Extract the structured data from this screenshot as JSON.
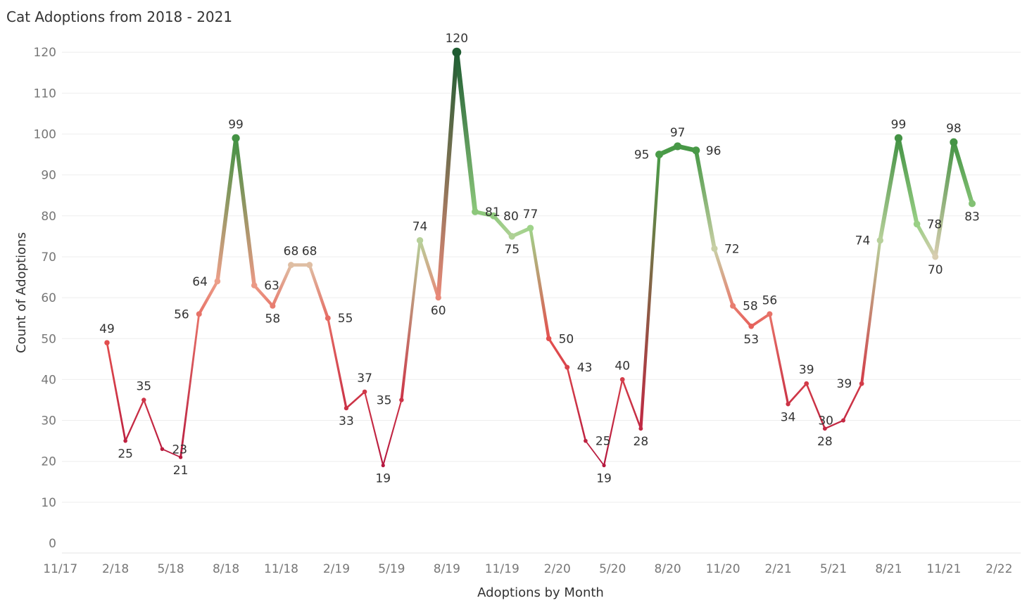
{
  "chart_data": {
    "type": "line",
    "title": "Cat Adoptions from 2018 - 2021",
    "xlabel": "Adoptions by Month",
    "ylabel": "Count of Adoptions",
    "ylim": [
      0,
      120
    ],
    "yticks": [
      0,
      10,
      20,
      30,
      40,
      50,
      60,
      70,
      80,
      90,
      100,
      110,
      120
    ],
    "xtick_labels": [
      "11/17",
      "2/18",
      "5/18",
      "8/18",
      "11/18",
      "2/19",
      "5/19",
      "8/19",
      "11/19",
      "2/20",
      "5/20",
      "8/20",
      "11/20",
      "2/21",
      "5/21",
      "8/21",
      "11/21",
      "2/22"
    ],
    "grid": true,
    "color_scale": {
      "low": "#b5173e",
      "mid": "#e8a08c",
      "light_green": "#9fd38a",
      "high": "#1f5c32"
    },
    "series": [
      {
        "points": [
          {
            "x": "2018-01",
            "y": 49
          },
          {
            "x": "2018-02",
            "y": 25
          },
          {
            "x": "2018-03",
            "y": 35
          },
          {
            "x": "2018-04",
            "y": 23
          },
          {
            "x": "2018-05",
            "y": 21
          },
          {
            "x": "2018-06",
            "y": 56
          },
          {
            "x": "2018-07",
            "y": 64
          },
          {
            "x": "2018-08",
            "y": 99
          },
          {
            "x": "2018-09",
            "y": 63
          },
          {
            "x": "2018-10",
            "y": 58
          },
          {
            "x": "2018-11",
            "y": 68
          },
          {
            "x": "2018-12",
            "y": 68
          },
          {
            "x": "2019-01",
            "y": 55
          },
          {
            "x": "2019-02",
            "y": 33
          },
          {
            "x": "2019-03",
            "y": 37
          },
          {
            "x": "2019-04",
            "y": 19
          },
          {
            "x": "2019-05",
            "y": 35
          },
          {
            "x": "2019-06",
            "y": 74
          },
          {
            "x": "2019-07",
            "y": 60
          },
          {
            "x": "2019-08",
            "y": 120
          },
          {
            "x": "2019-09",
            "y": 81
          },
          {
            "x": "2019-10",
            "y": 80
          },
          {
            "x": "2019-11",
            "y": 75
          },
          {
            "x": "2019-12",
            "y": 77
          },
          {
            "x": "2020-01",
            "y": 50
          },
          {
            "x": "2020-02",
            "y": 43
          },
          {
            "x": "2020-03",
            "y": 25
          },
          {
            "x": "2020-04",
            "y": 19
          },
          {
            "x": "2020-05",
            "y": 40
          },
          {
            "x": "2020-06",
            "y": 28
          },
          {
            "x": "2020-07",
            "y": 95
          },
          {
            "x": "2020-08",
            "y": 97
          },
          {
            "x": "2020-09",
            "y": 96
          },
          {
            "x": "2020-10",
            "y": 72
          },
          {
            "x": "2020-11",
            "y": 58
          },
          {
            "x": "2020-12",
            "y": 53
          },
          {
            "x": "2021-01",
            "y": 56
          },
          {
            "x": "2021-02",
            "y": 34
          },
          {
            "x": "2021-03",
            "y": 39
          },
          {
            "x": "2021-04",
            "y": 28
          },
          {
            "x": "2021-05",
            "y": 30
          },
          {
            "x": "2021-06",
            "y": 39
          },
          {
            "x": "2021-07",
            "y": 74
          },
          {
            "x": "2021-08",
            "y": 99
          },
          {
            "x": "2021-09",
            "y": 78
          },
          {
            "x": "2021-10",
            "y": 70
          },
          {
            "x": "2021-11",
            "y": 98
          },
          {
            "x": "2021-12",
            "y": 83
          }
        ]
      }
    ]
  }
}
